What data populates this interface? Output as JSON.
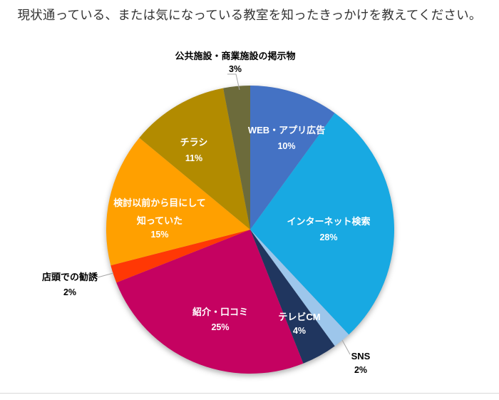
{
  "title": {
    "text": "現状通っている、または気になっている教室を知ったきっかけを教えてください。",
    "color": "#333333"
  },
  "chart_data": {
    "type": "pie",
    "title": "現状通っている、または気になっている教室を知ったきっかけを教えてください。",
    "direction": "clockwise",
    "start_angle_deg": 0,
    "legend": "none",
    "grid": false,
    "inside_label_color": "#FFFFFF",
    "outside_label_color": "#000000",
    "leader_line_color": "#A6A6A6",
    "slices": [
      {
        "label": "WEB・アプリ広告",
        "value_pct": 10,
        "color": "#4472C4",
        "label_placement": "inside"
      },
      {
        "label": "インターネット検索",
        "value_pct": 28,
        "color": "#18A9E2",
        "label_placement": "inside"
      },
      {
        "label": "SNS",
        "value_pct": 2,
        "color": "#9DC6EB",
        "label_placement": "outside"
      },
      {
        "label": "テレビCM",
        "value_pct": 4,
        "color": "#20365F",
        "label_placement": "inside"
      },
      {
        "label": "紹介・口コミ",
        "value_pct": 25,
        "color": "#C50261",
        "label_placement": "inside"
      },
      {
        "label": "店頭での勧誘",
        "value_pct": 2,
        "color": "#FF3805",
        "label_placement": "outside"
      },
      {
        "label": "検討以前から目にして知っていた",
        "label_lines": [
          "検討以前から目にして",
          "知っていた"
        ],
        "value_pct": 15,
        "color": "#FFA000",
        "label_placement": "inside"
      },
      {
        "label": "チラシ",
        "value_pct": 11,
        "color": "#B28B00",
        "label_placement": "inside"
      },
      {
        "label": "公共施設・商業施設の掲示物",
        "value_pct": 3,
        "color": "#6C6B3B",
        "label_placement": "outside"
      }
    ]
  }
}
